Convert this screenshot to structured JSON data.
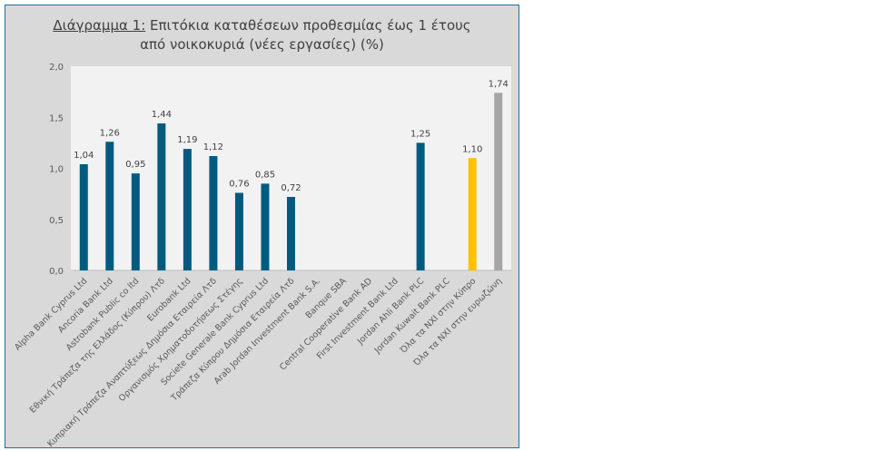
{
  "chart_data": {
    "type": "bar",
    "title_prefix": "Διάγραμμα 1:",
    "title_line1": "Επιτόκια καταθέσεων προθεσμίας έως 1 έτους",
    "title_line2": "από νοικοκυριά (νέες εργασίες) (%)",
    "ylim": [
      0,
      2.0
    ],
    "yticks": [
      "0,0",
      "0,5",
      "1,0",
      "1,5",
      "2,0"
    ],
    "categories": [
      "Alpha Bank Cyprus Ltd",
      "Ancoria Bank Ltd",
      "Astrobank Public co ltd",
      "Εθνική Τράπεζα της Ελλάδος (Κύπρου) Λτδ",
      "Eurobank Ltd",
      "Κυπριακή Τράπεζα Αναπτύξεως Δημόσια Εταιρεία Λτδ",
      "Οργανισμός Χρηματοδοτήσεως Στέγης",
      "Societe Generale Bank Cyprus Ltd",
      "Τράπεζα Κύπρου Δημόσια Εταιρεία Λτδ",
      "Arab Jordan Investment Bank S.A.",
      "Banque SBA",
      "Central Cooperative Bank AD",
      "First Investment Bank Ltd",
      "Jordan Ahli Bank PLC",
      "Jordan Kuwait Bank PLC",
      "Όλα τα ΝΧΙ στην Κύπρο",
      "Όλα τα ΝΧΙ στην ευρωζώνη"
    ],
    "values": [
      1.04,
      1.26,
      0.95,
      1.44,
      1.19,
      1.12,
      0.76,
      0.85,
      0.72,
      null,
      null,
      null,
      null,
      1.25,
      null,
      1.1,
      1.74
    ],
    "labels": [
      "1,04",
      "1,26",
      "0,95",
      "1,44",
      "1,19",
      "1,12",
      "0,76",
      "0,85",
      "0,72",
      "",
      "",
      "",
      "",
      "1,25",
      "",
      "1,10",
      "1,74"
    ],
    "colors": [
      "#005b7f",
      "#005b7f",
      "#005b7f",
      "#005b7f",
      "#005b7f",
      "#005b7f",
      "#005b7f",
      "#005b7f",
      "#005b7f",
      "#005b7f",
      "#005b7f",
      "#005b7f",
      "#005b7f",
      "#005b7f",
      "#005b7f",
      "#ffc000",
      "#a6a6a6"
    ],
    "grid": false
  }
}
